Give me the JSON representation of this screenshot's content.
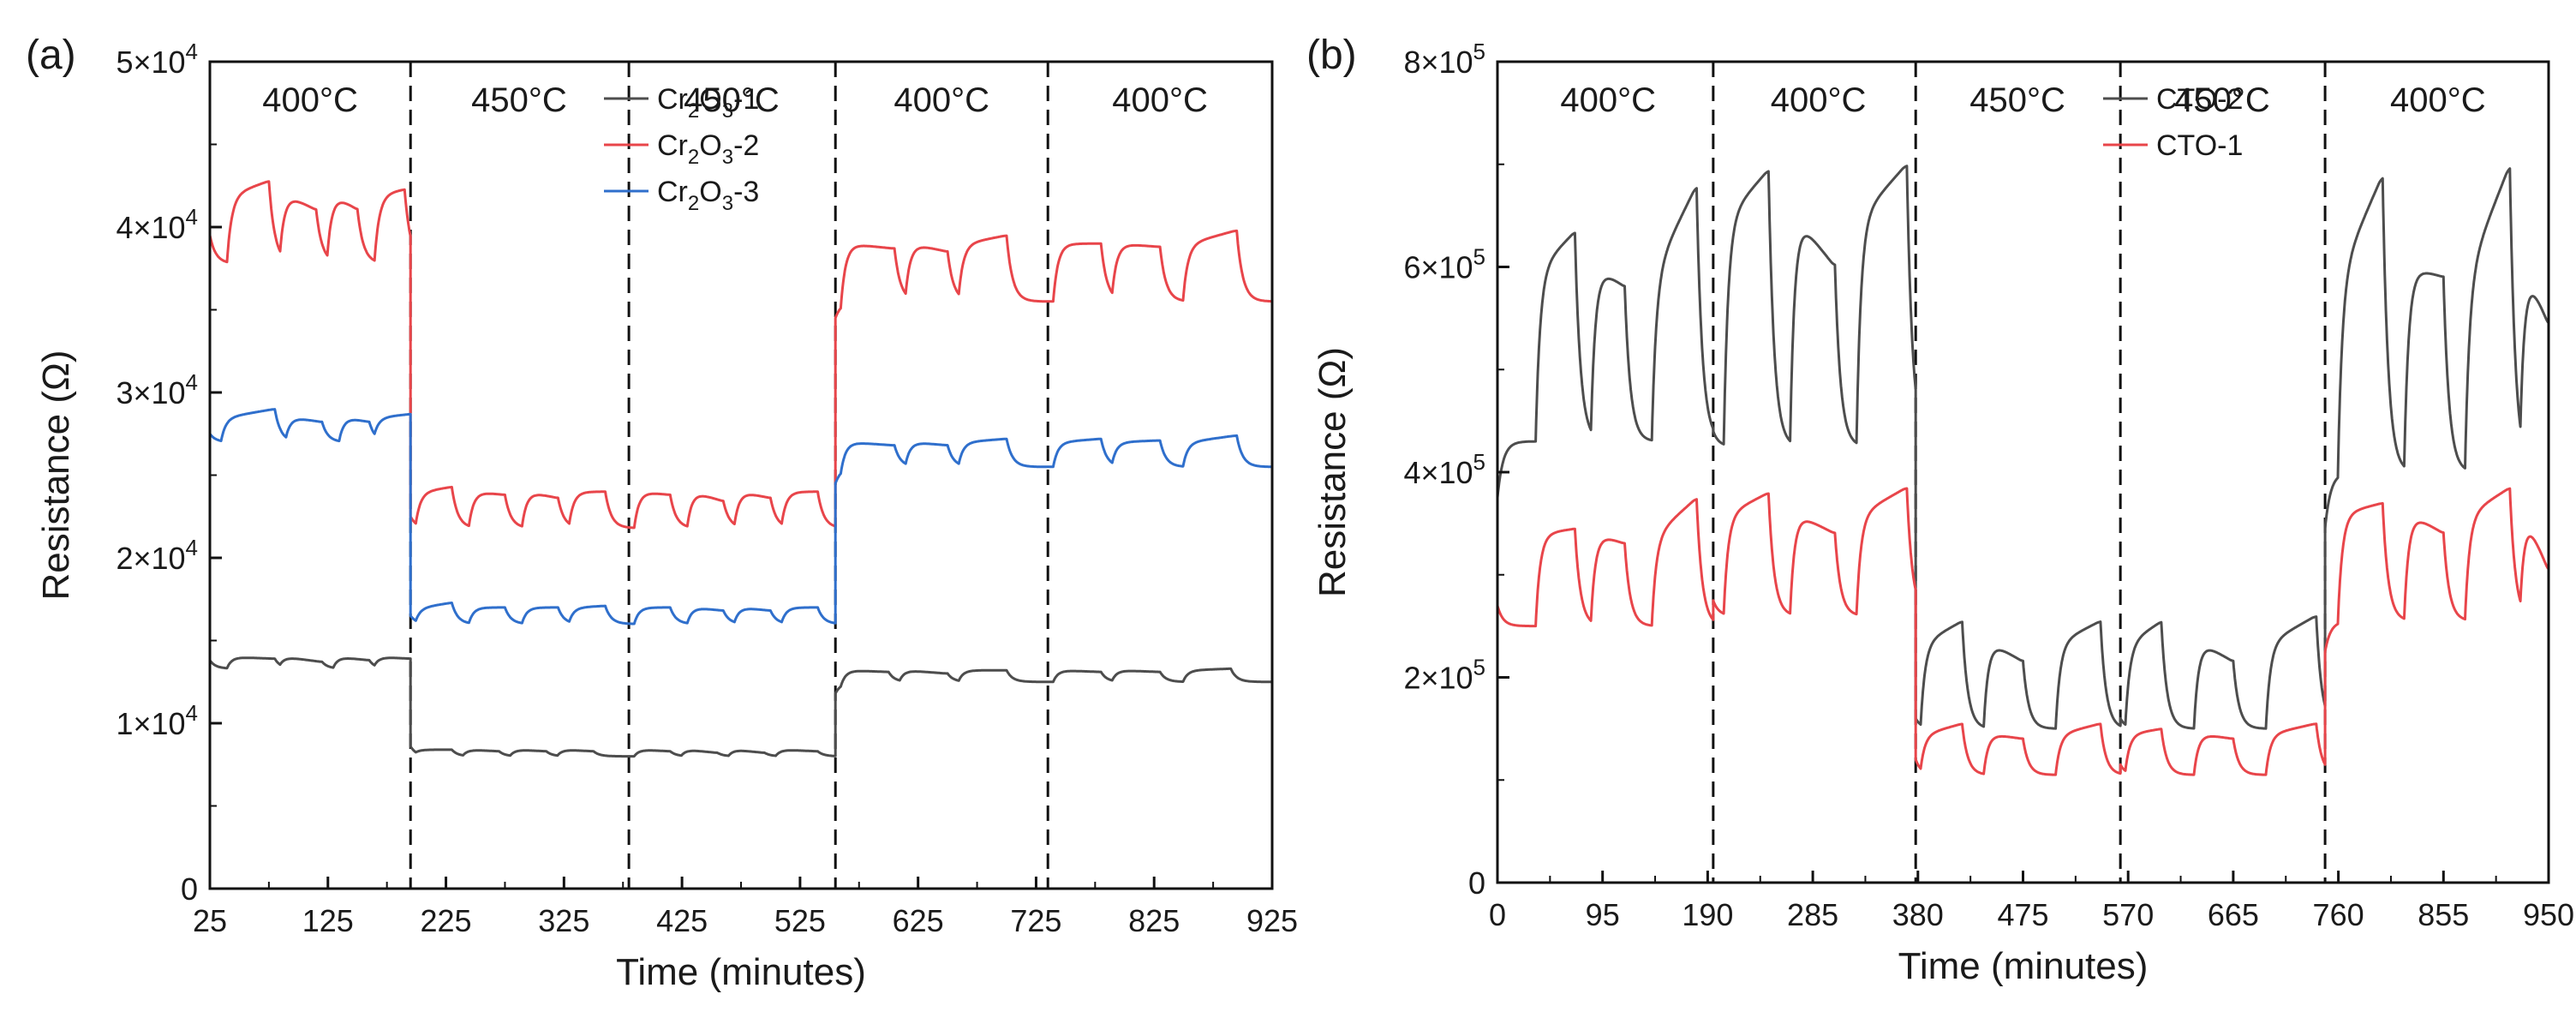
{
  "chart_data": [
    {
      "type": "line",
      "panel_label": "(a)",
      "xlabel": "Time (minutes)",
      "ylabel": "Resistance (Ω)",
      "xlim": [
        25,
        925
      ],
      "ylim": [
        0,
        50000
      ],
      "x_ticks": [
        25,
        125,
        225,
        325,
        425,
        525,
        625,
        725,
        825,
        925
      ],
      "y_ticks": [
        {
          "value": 0,
          "base": "0",
          "exp": ""
        },
        {
          "value": 10000,
          "base": "1×10",
          "exp": "4"
        },
        {
          "value": 20000,
          "base": "2×10",
          "exp": "4"
        },
        {
          "value": 30000,
          "base": "3×10",
          "exp": "4"
        },
        {
          "value": 40000,
          "base": "4×10",
          "exp": "4"
        },
        {
          "value": 50000,
          "base": "5×10",
          "exp": "4"
        }
      ],
      "dividers": [
        195,
        380,
        555,
        735
      ],
      "segments": [
        {
          "label": "400°C",
          "x_center": 110
        },
        {
          "label": "450°C",
          "x_center": 287
        },
        {
          "label": "450°C",
          "x_center": 467
        },
        {
          "label": "400°C",
          "x_center": 645
        },
        {
          "label": "400°C",
          "x_center": 830
        }
      ],
      "legend": [
        {
          "prefix": "Cr",
          "sub1": "2",
          "mid": "O",
          "sub2": "3",
          "suffix": "-1",
          "color": "#4d4d4d"
        },
        {
          "prefix": "Cr",
          "sub1": "2",
          "mid": "O",
          "sub2": "3",
          "suffix": "-2",
          "color": "#e8454a"
        },
        {
          "prefix": "Cr",
          "sub1": "2",
          "mid": "O",
          "sub2": "3",
          "suffix": "-3",
          "color": "#2f6fcc"
        }
      ],
      "series": [
        {
          "name": "Cr2O3-1",
          "color": "#4d4d4d",
          "regimes": [
            {
              "x0": 25,
              "x1": 195,
              "base": 13300,
              "high": 14000,
              "start": 13800,
              "pulses": [
                [
                  40,
                  80,
                  13900
                ],
                [
                  85,
                  120,
                  13700
                ],
                [
                  130,
                  160,
                  13800
                ],
                [
                  165,
                  195,
                  13900
                ]
              ]
            },
            {
              "x0": 195,
              "x1": 555,
              "base": 8000,
              "high": 8400,
              "start": 8600,
              "pulses": [
                [
                  200,
                  230,
                  8400
                ],
                [
                  240,
                  270,
                  8300
                ],
                [
                  280,
                  310,
                  8300
                ],
                [
                  320,
                  350,
                  8300
                ],
                [
                  385,
                  415,
                  8300
                ],
                [
                  425,
                  455,
                  8200
                ],
                [
                  465,
                  495,
                  8200
                ],
                [
                  505,
                  540,
                  8300
                ]
              ]
            },
            {
              "x0": 555,
              "x1": 925,
              "base": 12500,
              "high": 13200,
              "start": 11800,
              "pulses": [
                [
                  560,
                  600,
                  13100
                ],
                [
                  610,
                  650,
                  13000
                ],
                [
                  660,
                  700,
                  13200
                ],
                [
                  740,
                  780,
                  13100
                ],
                [
                  790,
                  830,
                  13100
                ],
                [
                  850,
                  890,
                  13300
                ]
              ]
            }
          ]
        },
        {
          "name": "Cr2O3-2",
          "color": "#e8454a",
          "regimes": [
            {
              "x0": 25,
              "x1": 195,
              "base": 37800,
              "high": 42000,
              "start": 39500,
              "pulses": [
                [
                  40,
                  75,
                  42800
                ],
                [
                  85,
                  115,
                  41000
                ],
                [
                  125,
                  150,
                  41000
                ],
                [
                  165,
                  190,
                  42300
                ]
              ]
            },
            {
              "x0": 195,
              "x1": 555,
              "base": 21800,
              "high": 24000,
              "start": 22500,
              "pulses": [
                [
                  200,
                  230,
                  24300
                ],
                [
                  245,
                  275,
                  23800
                ],
                [
                  290,
                  320,
                  23600
                ],
                [
                  330,
                  360,
                  24000
                ],
                [
                  385,
                  415,
                  23800
                ],
                [
                  430,
                  460,
                  23400
                ],
                [
                  470,
                  500,
                  23600
                ],
                [
                  510,
                  540,
                  24000
                ]
              ]
            },
            {
              "x0": 555,
              "x1": 925,
              "base": 35500,
              "high": 39000,
              "start": 34500,
              "pulses": [
                [
                  560,
                  605,
                  38700
                ],
                [
                  615,
                  650,
                  38500
                ],
                [
                  660,
                  700,
                  39500
                ],
                [
                  740,
                  780,
                  39000
                ],
                [
                  790,
                  830,
                  38800
                ],
                [
                  850,
                  895,
                  39800
                ]
              ]
            }
          ]
        },
        {
          "name": "Cr2O3-3",
          "color": "#2f6fcc",
          "regimes": [
            {
              "x0": 25,
              "x1": 195,
              "base": 27000,
              "high": 28500,
              "start": 27500,
              "pulses": [
                [
                  35,
                  80,
                  29000
                ],
                [
                  90,
                  120,
                  28200
                ],
                [
                  135,
                  160,
                  28200
                ],
                [
                  165,
                  195,
                  28700
                ]
              ]
            },
            {
              "x0": 195,
              "x1": 555,
              "base": 16000,
              "high": 17000,
              "start": 16500,
              "pulses": [
                [
                  200,
                  230,
                  17300
                ],
                [
                  245,
                  275,
                  17000
                ],
                [
                  290,
                  320,
                  17000
                ],
                [
                  330,
                  360,
                  17100
                ],
                [
                  385,
                  415,
                  17000
                ],
                [
                  430,
                  460,
                  16800
                ],
                [
                  470,
                  500,
                  16800
                ],
                [
                  510,
                  540,
                  17000
                ]
              ]
            },
            {
              "x0": 555,
              "x1": 925,
              "base": 25500,
              "high": 27000,
              "start": 24500,
              "pulses": [
                [
                  560,
                  605,
                  26800
                ],
                [
                  615,
                  650,
                  26800
                ],
                [
                  660,
                  700,
                  27200
                ],
                [
                  740,
                  780,
                  27200
                ],
                [
                  790,
                  830,
                  27100
                ],
                [
                  850,
                  895,
                  27400
                ]
              ]
            }
          ]
        }
      ]
    },
    {
      "type": "line",
      "panel_label": "(b)",
      "xlabel": "Time (minutes)",
      "ylabel": "Resistance (Ω)",
      "xlim": [
        0,
        950
      ],
      "ylim": [
        0,
        800000
      ],
      "x_ticks": [
        0,
        95,
        190,
        285,
        380,
        475,
        570,
        665,
        760,
        855,
        950
      ],
      "y_ticks": [
        {
          "value": 0,
          "base": "0",
          "exp": ""
        },
        {
          "value": 200000,
          "base": "2×10",
          "exp": "5"
        },
        {
          "value": 400000,
          "base": "4×10",
          "exp": "5"
        },
        {
          "value": 600000,
          "base": "6×10",
          "exp": "5"
        },
        {
          "value": 800000,
          "base": "8×10",
          "exp": "5"
        }
      ],
      "dividers": [
        195,
        378,
        563,
        748
      ],
      "segments": [
        {
          "label": "400°C",
          "x_center": 100
        },
        {
          "label": "400°C",
          "x_center": 290
        },
        {
          "label": "450°C",
          "x_center": 470
        },
        {
          "label": "450°C",
          "x_center": 655
        },
        {
          "label": "400°C",
          "x_center": 850
        }
      ],
      "legend": [
        {
          "prefix": "CTO-2",
          "sub1": "",
          "mid": "",
          "sub2": "",
          "suffix": "",
          "color": "#4d4d4d"
        },
        {
          "prefix": "CTO-1",
          "sub1": "",
          "mid": "",
          "sub2": "",
          "suffix": "",
          "color": "#e8454a"
        }
      ],
      "series": [
        {
          "name": "CTO-2",
          "color": "#4d4d4d",
          "regimes": [
            {
              "x0": 0,
              "x1": 195,
              "base": 430000,
              "high": 600000,
              "start": 375000,
              "pulses": [
                [
                  35,
                  70,
                  635000
                ],
                [
                  85,
                  115,
                  580000
                ],
                [
                  140,
                  180,
                  680000
                ]
              ]
            },
            {
              "x0": 195,
              "x1": 378,
              "base": 425000,
              "high": 650000,
              "start": 440000,
              "pulses": [
                [
                  205,
                  245,
                  695000
                ],
                [
                  265,
                  305,
                  600000
                ],
                [
                  325,
                  370,
                  700000
                ]
              ]
            },
            {
              "x0": 378,
              "x1": 563,
              "base": 150000,
              "high": 235000,
              "start": 160000,
              "pulses": [
                [
                  383,
                  420,
                  255000
                ],
                [
                  440,
                  475,
                  215000
                ],
                [
                  505,
                  545,
                  255000
                ]
              ]
            },
            {
              "x0": 563,
              "x1": 748,
              "base": 150000,
              "high": 235000,
              "start": 160000,
              "pulses": [
                [
                  568,
                  600,
                  255000
                ],
                [
                  630,
                  665,
                  215000
                ],
                [
                  695,
                  740,
                  260000
                ]
              ]
            },
            {
              "x0": 748,
              "x1": 950,
              "base": 400000,
              "high": 600000,
              "start": 345000,
              "pulses": [
                [
                  760,
                  800,
                  690000
                ],
                [
                  820,
                  855,
                  590000
                ],
                [
                  875,
                  915,
                  700000
                ],
                [
                  925,
                  950,
                  540000
                ]
              ]
            }
          ]
        },
        {
          "name": "CTO-1",
          "color": "#e8454a",
          "regimes": [
            {
              "x0": 0,
              "x1": 195,
              "base": 250000,
              "high": 340000,
              "start": 270000,
              "pulses": [
                [
                  35,
                  70,
                  345000
                ],
                [
                  85,
                  115,
                  330000
                ],
                [
                  140,
                  180,
                  375000
                ]
              ]
            },
            {
              "x0": 195,
              "x1": 378,
              "base": 260000,
              "high": 360000,
              "start": 275000,
              "pulses": [
                [
                  205,
                  245,
                  380000
                ],
                [
                  265,
                  305,
                  340000
                ],
                [
                  325,
                  370,
                  385000
                ]
              ]
            },
            {
              "x0": 378,
              "x1": 563,
              "base": 105000,
              "high": 145000,
              "start": 120000,
              "pulses": [
                [
                  383,
                  420,
                  155000
                ],
                [
                  440,
                  475,
                  140000
                ],
                [
                  505,
                  545,
                  155000
                ]
              ]
            },
            {
              "x0": 563,
              "x1": 748,
              "base": 105000,
              "high": 145000,
              "start": 115000,
              "pulses": [
                [
                  568,
                  600,
                  150000
                ],
                [
                  630,
                  665,
                  140000
                ],
                [
                  695,
                  740,
                  155000
                ]
              ]
            },
            {
              "x0": 748,
              "x1": 950,
              "base": 255000,
              "high": 360000,
              "start": 225000,
              "pulses": [
                [
                  760,
                  800,
                  370000
                ],
                [
                  820,
                  855,
                  340000
                ],
                [
                  875,
                  915,
                  385000
                ],
                [
                  925,
                  950,
                  300000
                ]
              ]
            }
          ]
        }
      ]
    }
  ]
}
